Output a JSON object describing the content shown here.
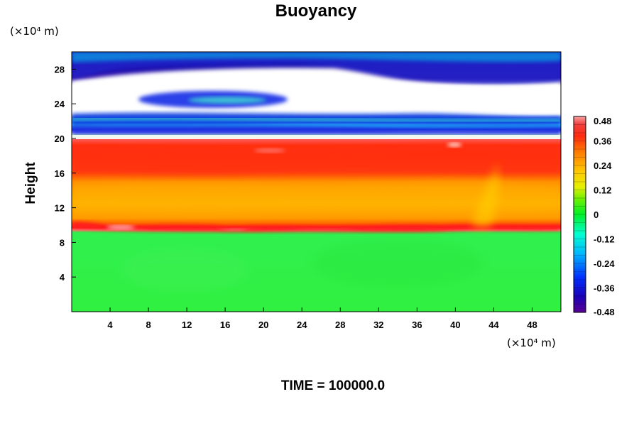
{
  "chart_data": {
    "type": "heatmap",
    "title": "Buoyancy",
    "ylabel": "Height",
    "y_unit": "(×10⁴ m)",
    "x_unit": "(×10⁴ m)",
    "footer": "TIME = 100000.0",
    "xlim": [
      0,
      51
    ],
    "ylim": [
      0,
      30
    ],
    "x_ticks": [
      4,
      8,
      12,
      16,
      20,
      24,
      28,
      32,
      36,
      40,
      44,
      48
    ],
    "y_ticks": [
      4,
      8,
      12,
      16,
      20,
      24,
      28
    ],
    "colorbar": {
      "range": [
        -0.48,
        0.48
      ],
      "ticks": [
        0.48,
        0.36,
        0.24,
        0.12,
        0,
        -0.12,
        -0.24,
        -0.36,
        -0.48
      ],
      "tick_labels": [
        "0.48",
        "0.36",
        "0.24",
        "0.12",
        "0",
        "-0.12",
        "-0.24",
        "-0.36",
        "-0.48"
      ],
      "levels": 24
    },
    "field_summary": {
      "y_0_to_10": 0.0,
      "y_10": 0.44,
      "y_10_to_12": 0.3,
      "y_12_to_15": 0.22,
      "y_15_to_20": 0.36,
      "y_20": 0.44,
      "y_21_to_23": -0.28,
      "y_23_to_27": "white (outside colour range)",
      "y_27_to_30": -0.4
    }
  }
}
